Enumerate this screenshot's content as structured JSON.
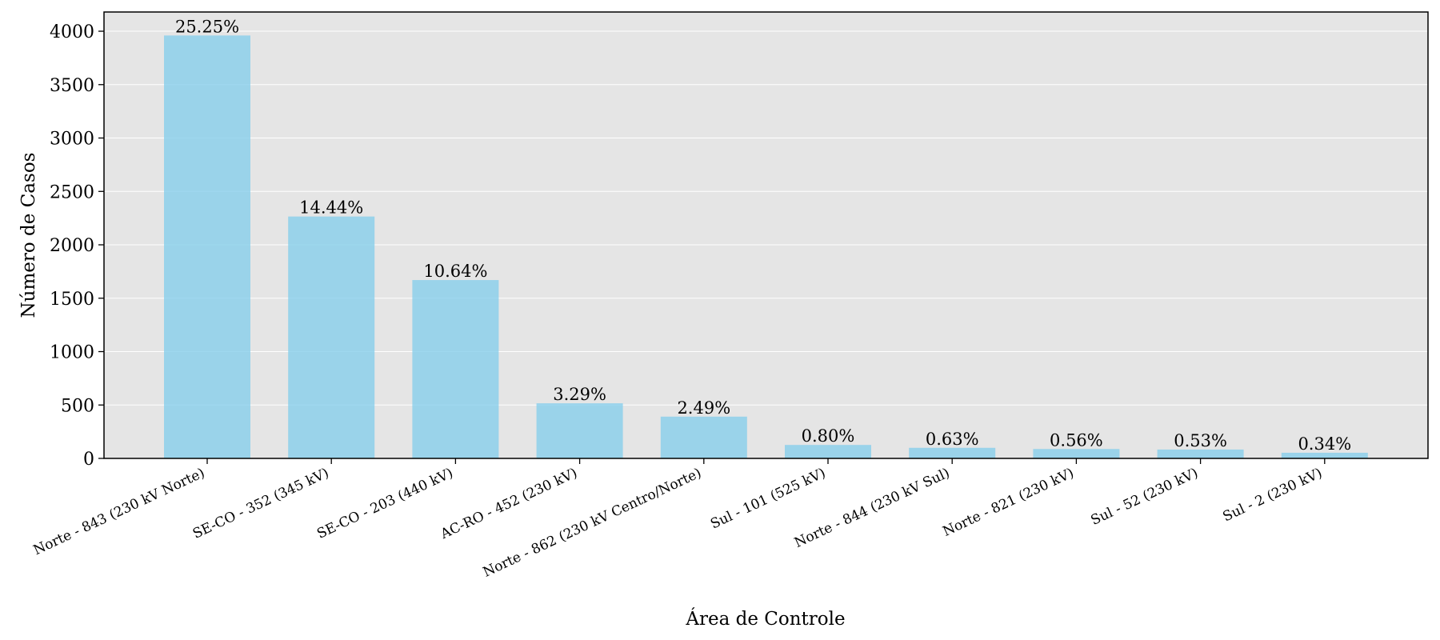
{
  "chart_data": {
    "type": "bar",
    "xlabel": "Área de Controle",
    "ylabel": "Número de Casos",
    "ylim": [
      0,
      4180
    ],
    "yticks": [
      0,
      500,
      1000,
      1500,
      2000,
      2500,
      3000,
      3500,
      4000
    ],
    "grid": "horizontal",
    "bar_color": "#87CEEB",
    "background_color": "#E5E5E5",
    "categories": [
      "Norte - 843 (230 kV Norte)",
      "SE-CO - 352 (345 kV)",
      "SE-CO - 203 (440 kV)",
      "AC-RO - 452 (230 kV)",
      "Norte - 862 (230 kV Centro/Norte)",
      "Sul - 101 (525 kV)",
      "Norte - 844 (230 kV Sul)",
      "Norte - 821 (230 kV)",
      "Sul - 52 (230 kV)",
      "Sul - 2 (230 kV)"
    ],
    "values": [
      3960,
      2265,
      1670,
      516,
      391,
      126,
      99,
      88,
      83,
      53
    ],
    "data_labels": [
      "25.25%",
      "14.44%",
      "10.64%",
      "3.29%",
      "2.49%",
      "0.80%",
      "0.63%",
      "0.56%",
      "0.53%",
      "0.34%"
    ]
  }
}
